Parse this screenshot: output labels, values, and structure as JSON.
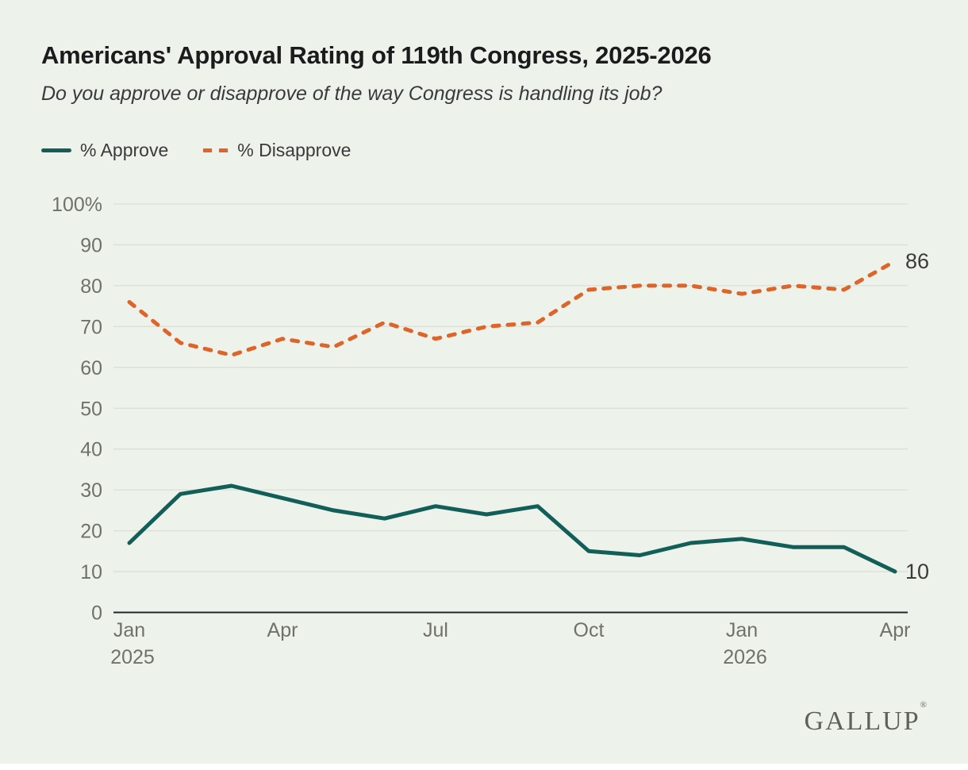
{
  "title": "Americans' Approval Rating of 119th Congress, 2025-2026",
  "subtitle": "Do you approve or disapprove of the way Congress is handling its job?",
  "legend": {
    "approve_label": "% Approve",
    "disapprove_label": "% Disapprove"
  },
  "branding": {
    "logo_text": "GALLUP",
    "reg_mark": "®"
  },
  "colors": {
    "background": "#edf3eb",
    "approve": "#115f58",
    "disapprove": "#dd652a",
    "gridline": "#dadfd8",
    "axis": "#24262a",
    "tick_text": "#70716d",
    "end_label_text": "#3b3b3b"
  },
  "chart_data": {
    "type": "line",
    "title": "Americans' Approval Rating of 119th Congress, 2025-2026",
    "xlabel": "",
    "ylabel": "",
    "ylim": [
      0,
      100
    ],
    "grid": true,
    "legend_position": "top-left",
    "x": [
      "Jan 2025",
      "Feb 2025",
      "Mar 2025",
      "Apr 2025",
      "May 2025",
      "Jun 2025",
      "Jul 2025",
      "Aug 2025",
      "Sep 2025",
      "Oct 2025",
      "Nov 2025",
      "Dec 2025",
      "Jan 2026",
      "Feb 2026",
      "Mar 2026",
      "Apr 2026"
    ],
    "series": [
      {
        "name": "% Approve",
        "style": "solid",
        "color": "#115f58",
        "end_label": "10",
        "values": [
          17,
          29,
          31,
          28,
          25,
          23,
          26,
          24,
          26,
          15,
          14,
          17,
          18,
          16,
          16,
          10
        ]
      },
      {
        "name": "% Disapprove",
        "style": "dashed",
        "color": "#dd652a",
        "end_label": "86",
        "values": [
          76,
          66,
          63,
          67,
          65,
          71,
          67,
          70,
          71,
          79,
          80,
          80,
          78,
          80,
          79,
          86
        ]
      }
    ],
    "y_ticks": [
      {
        "label": "100%",
        "value": 100
      },
      {
        "label": "90",
        "value": 90
      },
      {
        "label": "80",
        "value": 80
      },
      {
        "label": "70",
        "value": 70
      },
      {
        "label": "60",
        "value": 60
      },
      {
        "label": "50",
        "value": 50
      },
      {
        "label": "40",
        "value": 40
      },
      {
        "label": "30",
        "value": 30
      },
      {
        "label": "20",
        "value": 20
      },
      {
        "label": "10",
        "value": 10
      },
      {
        "label": "0",
        "value": 0
      }
    ],
    "x_ticks": [
      {
        "label": "Jan",
        "year": "2025",
        "index": 0
      },
      {
        "label": "Apr",
        "year": "",
        "index": 3
      },
      {
        "label": "Jul",
        "year": "",
        "index": 6
      },
      {
        "label": "Oct",
        "year": "",
        "index": 9
      },
      {
        "label": "Jan",
        "year": "2026",
        "index": 12
      },
      {
        "label": "Apr",
        "year": "",
        "index": 15
      }
    ]
  }
}
